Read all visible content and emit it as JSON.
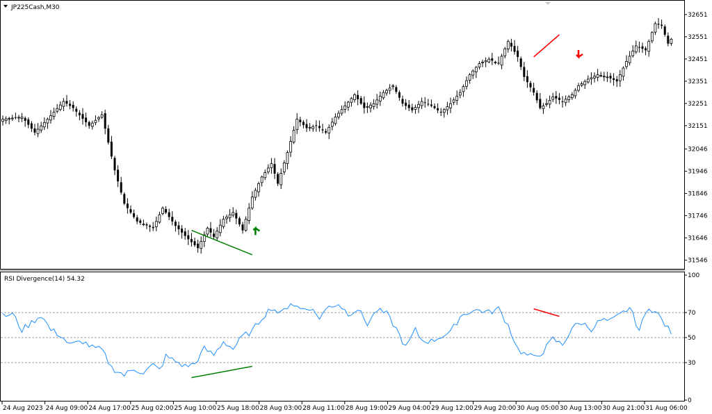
{
  "colors": {
    "background": "#ffffff",
    "frame": "#000000",
    "candle": "#000000",
    "bear_div": "#ff0000",
    "bull_div": "#008000",
    "rsi_line": "#1e90ff",
    "level_line": "#808080"
  },
  "chart_data": [
    {
      "type": "candlestick",
      "title": "JP225Cash,M30",
      "symbol": "JP225Cash",
      "timeframe": "M30",
      "ylim": [
        31510,
        32710
      ],
      "y_ticks": [
        31546,
        31646,
        31746,
        31846,
        31946,
        32046,
        32151,
        32251,
        32351,
        32451,
        32551,
        32651
      ],
      "x_ticks": [
        "24 Aug 2023",
        "24 Aug 09:00",
        "24 Aug 17:00",
        "25 Aug 02:00",
        "25 Aug 10:00",
        "25 Aug 18:00",
        "28 Aug 03:00",
        "28 Aug 11:00",
        "28 Aug 19:00",
        "29 Aug 04:00",
        "29 Aug 12:00",
        "29 Aug 20:00",
        "30 Aug 05:00",
        "30 Aug 13:00",
        "30 Aug 21:00",
        "31 Aug 06:00"
      ],
      "close_path": [
        [
          0,
          32180
        ],
        [
          6,
          32190
        ],
        [
          10,
          32120
        ],
        [
          14,
          32180
        ],
        [
          19,
          32260
        ],
        [
          22,
          32230
        ],
        [
          27,
          32150
        ],
        [
          31,
          32200
        ],
        [
          35,
          31950
        ],
        [
          38,
          31800
        ],
        [
          42,
          31720
        ],
        [
          47,
          31690
        ],
        [
          50,
          31780
        ],
        [
          54,
          31700
        ],
        [
          58,
          31640
        ],
        [
          61,
          31600
        ],
        [
          64,
          31690
        ],
        [
          66,
          31650
        ],
        [
          69,
          31730
        ],
        [
          72,
          31760
        ],
        [
          75,
          31680
        ],
        [
          78,
          31830
        ],
        [
          81,
          31920
        ],
        [
          84,
          31980
        ],
        [
          86,
          31890
        ],
        [
          89,
          32030
        ],
        [
          92,
          32180
        ],
        [
          95,
          32140
        ],
        [
          98,
          32150
        ],
        [
          101,
          32120
        ],
        [
          104,
          32190
        ],
        [
          107,
          32240
        ],
        [
          110,
          32290
        ],
        [
          113,
          32230
        ],
        [
          116,
          32250
        ],
        [
          119,
          32300
        ],
        [
          122,
          32330
        ],
        [
          125,
          32250
        ],
        [
          128,
          32220
        ],
        [
          131,
          32260
        ],
        [
          134,
          32240
        ],
        [
          137,
          32210
        ],
        [
          140,
          32250
        ],
        [
          143,
          32300
        ],
        [
          146,
          32380
        ],
        [
          149,
          32430
        ],
        [
          152,
          32450
        ],
        [
          155,
          32430
        ],
        [
          158,
          32530
        ],
        [
          161,
          32460
        ],
        [
          163,
          32370
        ],
        [
          166,
          32300
        ],
        [
          168,
          32230
        ],
        [
          170,
          32250
        ],
        [
          172,
          32280
        ],
        [
          175,
          32260
        ],
        [
          178,
          32290
        ],
        [
          180,
          32330
        ],
        [
          183,
          32360
        ],
        [
          186,
          32380
        ],
        [
          189,
          32370
        ],
        [
          192,
          32350
        ],
        [
          195,
          32440
        ],
        [
          198,
          32510
        ],
        [
          201,
          32490
        ],
        [
          204,
          32610
        ],
        [
          206,
          32600
        ],
        [
          208,
          32520
        ],
        [
          209,
          32540
        ]
      ],
      "divergences": [
        {
          "kind": "bullish",
          "from": [
            59,
            31680
          ],
          "to": [
            78,
            31570
          ]
        },
        {
          "kind": "bearish",
          "from": [
            166,
            32460
          ],
          "to": [
            174,
            32560
          ]
        }
      ],
      "arrows": [
        {
          "kind": "buy",
          "x": 79,
          "y": 31690
        },
        {
          "kind": "sell",
          "x": 180,
          "y": 32460
        }
      ]
    },
    {
      "type": "line",
      "title": "RSI Divergence(14) 54.32",
      "ylim": [
        0,
        100
      ],
      "y_ticks": [
        0,
        30,
        50,
        70,
        100
      ],
      "levels": [
        30,
        50,
        70
      ],
      "rsi_path": [
        [
          0,
          67
        ],
        [
          3,
          69
        ],
        [
          6,
          56
        ],
        [
          9,
          62
        ],
        [
          12,
          68
        ],
        [
          15,
          56
        ],
        [
          18,
          52
        ],
        [
          21,
          44
        ],
        [
          25,
          47
        ],
        [
          28,
          42
        ],
        [
          31,
          40
        ],
        [
          34,
          26
        ],
        [
          38,
          20
        ],
        [
          41,
          25
        ],
        [
          44,
          22
        ],
        [
          47,
          28
        ],
        [
          49,
          24
        ],
        [
          51,
          35
        ],
        [
          54,
          31
        ],
        [
          57,
          27
        ],
        [
          60,
          29
        ],
        [
          63,
          41
        ],
        [
          66,
          36
        ],
        [
          69,
          47
        ],
        [
          72,
          41
        ],
        [
          75,
          51
        ],
        [
          78,
          55
        ],
        [
          81,
          66
        ],
        [
          84,
          74
        ],
        [
          87,
          69
        ],
        [
          90,
          78
        ],
        [
          93,
          73
        ],
        [
          96,
          74
        ],
        [
          99,
          66
        ],
        [
          102,
          75
        ],
        [
          105,
          77
        ],
        [
          108,
          69
        ],
        [
          111,
          73
        ],
        [
          114,
          61
        ],
        [
          117,
          72
        ],
        [
          120,
          69
        ],
        [
          123,
          57
        ],
        [
          126,
          42
        ],
        [
          129,
          56
        ],
        [
          131,
          48
        ],
        [
          134,
          47
        ],
        [
          137,
          51
        ],
        [
          140,
          54
        ],
        [
          143,
          67
        ],
        [
          146,
          71
        ],
        [
          149,
          72
        ],
        [
          152,
          70
        ],
        [
          155,
          73
        ],
        [
          158,
          60
        ],
        [
          161,
          41
        ],
        [
          163,
          37
        ],
        [
          166,
          34
        ],
        [
          169,
          39
        ],
        [
          172,
          49
        ],
        [
          175,
          44
        ],
        [
          178,
          58
        ],
        [
          181,
          62
        ],
        [
          184,
          57
        ],
        [
          187,
          64
        ],
        [
          190,
          63
        ],
        [
          193,
          68
        ],
        [
          196,
          74
        ],
        [
          199,
          56
        ],
        [
          202,
          75
        ],
        [
          205,
          68
        ],
        [
          208,
          57
        ],
        [
          209,
          54
        ]
      ],
      "divergences": [
        {
          "kind": "bullish",
          "from": [
            59,
            18
          ],
          "to": [
            78,
            27
          ]
        },
        {
          "kind": "bearish",
          "from": [
            166,
            73
          ],
          "to": [
            174,
            67
          ]
        }
      ]
    }
  ]
}
